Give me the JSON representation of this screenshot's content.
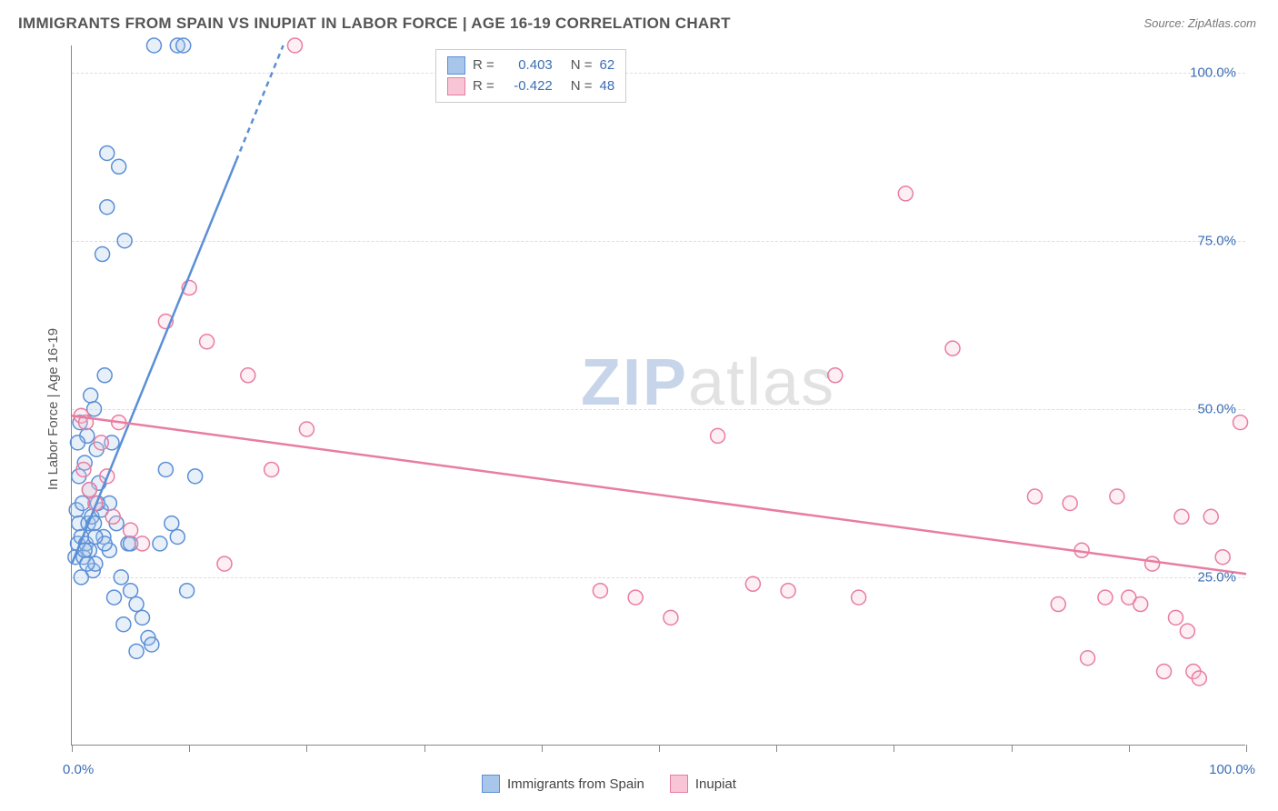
{
  "title": "IMMIGRANTS FROM SPAIN VS INUPIAT IN LABOR FORCE | AGE 16-19 CORRELATION CHART",
  "source": "Source: ZipAtlas.com",
  "y_axis_label": "In Labor Force | Age 16-19",
  "chart": {
    "type": "scatter",
    "xlim": [
      0,
      100
    ],
    "ylim": [
      0,
      104
    ],
    "x_ticks": [
      0,
      10,
      20,
      30,
      40,
      50,
      60,
      70,
      80,
      90,
      100
    ],
    "x_tick_labels": [
      {
        "v": 0,
        "t": "0.0%"
      },
      {
        "v": 100,
        "t": "100.0%"
      }
    ],
    "y_gridlines": [
      25,
      50,
      75,
      100
    ],
    "y_tick_labels": [
      {
        "v": 25,
        "t": "25.0%"
      },
      {
        "v": 50,
        "t": "50.0%"
      },
      {
        "v": 75,
        "t": "75.0%"
      },
      {
        "v": 100,
        "t": "100.0%"
      }
    ],
    "grid_color": "#dddddd",
    "axis_color": "#888888",
    "background": "#ffffff",
    "tick_label_color": "#3b6db5",
    "marker_radius": 8,
    "marker_stroke_width": 1.5,
    "marker_fill_opacity": 0.28,
    "series": [
      {
        "id": "spain",
        "label": "Immigrants from Spain",
        "color_stroke": "#5b8fd6",
        "color_fill": "#a8c5ea",
        "r": 0.403,
        "n": 62,
        "trend": {
          "x1": 0,
          "y1": 27,
          "x2": 18,
          "y2": 104,
          "solid_split_x": 14,
          "width": 2.5
        },
        "points": [
          [
            0.3,
            28
          ],
          [
            0.4,
            35
          ],
          [
            0.5,
            30
          ],
          [
            0.6,
            33
          ],
          [
            0.7,
            48
          ],
          [
            0.8,
            31
          ],
          [
            0.9,
            36
          ],
          [
            1.0,
            28
          ],
          [
            1.1,
            42
          ],
          [
            1.2,
            30
          ],
          [
            1.3,
            46
          ],
          [
            1.4,
            33
          ],
          [
            1.5,
            29
          ],
          [
            1.6,
            52
          ],
          [
            1.7,
            34
          ],
          [
            1.8,
            26
          ],
          [
            1.9,
            50
          ],
          [
            2.0,
            27
          ],
          [
            2.1,
            44
          ],
          [
            2.3,
            39
          ],
          [
            2.5,
            35
          ],
          [
            2.6,
            73
          ],
          [
            2.7,
            31
          ],
          [
            2.8,
            55
          ],
          [
            3.0,
            80
          ],
          [
            3.0,
            88
          ],
          [
            3.2,
            29
          ],
          [
            3.4,
            45
          ],
          [
            3.6,
            22
          ],
          [
            3.8,
            33
          ],
          [
            4.0,
            86
          ],
          [
            4.2,
            25
          ],
          [
            4.4,
            18
          ],
          [
            4.5,
            75
          ],
          [
            4.8,
            30
          ],
          [
            5.0,
            23
          ],
          [
            5.5,
            14
          ],
          [
            5.0,
            30
          ],
          [
            5.5,
            21
          ],
          [
            6.0,
            19
          ],
          [
            6.5,
            16
          ],
          [
            6.8,
            15
          ],
          [
            7.0,
            104
          ],
          [
            7.5,
            30
          ],
          [
            8.0,
            41
          ],
          [
            8.5,
            33
          ],
          [
            9.0,
            104
          ],
          [
            9.0,
            31
          ],
          [
            9.5,
            104
          ],
          [
            9.8,
            23
          ],
          [
            10.5,
            40
          ],
          [
            2.2,
            36
          ],
          [
            1.1,
            29
          ],
          [
            0.6,
            40
          ],
          [
            1.9,
            33
          ],
          [
            2.8,
            30
          ],
          [
            0.8,
            25
          ],
          [
            1.5,
            38
          ],
          [
            0.5,
            45
          ],
          [
            3.2,
            36
          ],
          [
            2.0,
            31
          ],
          [
            1.3,
            27
          ]
        ]
      },
      {
        "id": "inupiat",
        "label": "Inupiat",
        "color_stroke": "#e87da1",
        "color_fill": "#f7c5d5",
        "r": -0.422,
        "n": 48,
        "trend": {
          "x1": 0,
          "y1": 49,
          "x2": 100,
          "y2": 25.5,
          "solid_split_x": 100,
          "width": 2.5
        },
        "points": [
          [
            0.8,
            49
          ],
          [
            1.0,
            41
          ],
          [
            1.2,
            48
          ],
          [
            1.5,
            38
          ],
          [
            2.0,
            36
          ],
          [
            2.5,
            45
          ],
          [
            3.0,
            40
          ],
          [
            3.5,
            34
          ],
          [
            4.0,
            48
          ],
          [
            5.0,
            32
          ],
          [
            6.0,
            30
          ],
          [
            8.0,
            63
          ],
          [
            10.0,
            68
          ],
          [
            11.5,
            60
          ],
          [
            13.0,
            27
          ],
          [
            15.0,
            55
          ],
          [
            17.0,
            41
          ],
          [
            19.0,
            104
          ],
          [
            20.0,
            47
          ],
          [
            45.0,
            23
          ],
          [
            48.0,
            22
          ],
          [
            51.0,
            19
          ],
          [
            55.0,
            46
          ],
          [
            58.0,
            24
          ],
          [
            61.0,
            23
          ],
          [
            65.0,
            55
          ],
          [
            67.0,
            22
          ],
          [
            71.0,
            82
          ],
          [
            75.0,
            59
          ],
          [
            82.0,
            37
          ],
          [
            84.0,
            21
          ],
          [
            85.0,
            36
          ],
          [
            86.0,
            29
          ],
          [
            86.5,
            13
          ],
          [
            88.0,
            22
          ],
          [
            89.0,
            37
          ],
          [
            90.0,
            22
          ],
          [
            91.0,
            21
          ],
          [
            92.0,
            27
          ],
          [
            93.0,
            11
          ],
          [
            94.0,
            19
          ],
          [
            94.5,
            34
          ],
          [
            95.0,
            17
          ],
          [
            95.5,
            11
          ],
          [
            96.0,
            10
          ],
          [
            97.0,
            34
          ],
          [
            98.0,
            28
          ],
          [
            99.5,
            48
          ]
        ]
      }
    ]
  },
  "legend_top": {
    "rows": [
      {
        "swatch_stroke": "#5b8fd6",
        "swatch_fill": "#a8c5ea",
        "r": "0.403",
        "n": "62"
      },
      {
        "swatch_stroke": "#e87da1",
        "swatch_fill": "#f7c5d5",
        "r": "-0.422",
        "n": "48"
      }
    ]
  },
  "legend_bottom": {
    "items": [
      {
        "swatch_stroke": "#5b8fd6",
        "swatch_fill": "#a8c5ea",
        "label": "Immigrants from Spain"
      },
      {
        "swatch_stroke": "#e87da1",
        "swatch_fill": "#f7c5d5",
        "label": "Inupiat"
      }
    ]
  },
  "watermark": {
    "zip": "ZIP",
    "atlas": "atlas"
  }
}
